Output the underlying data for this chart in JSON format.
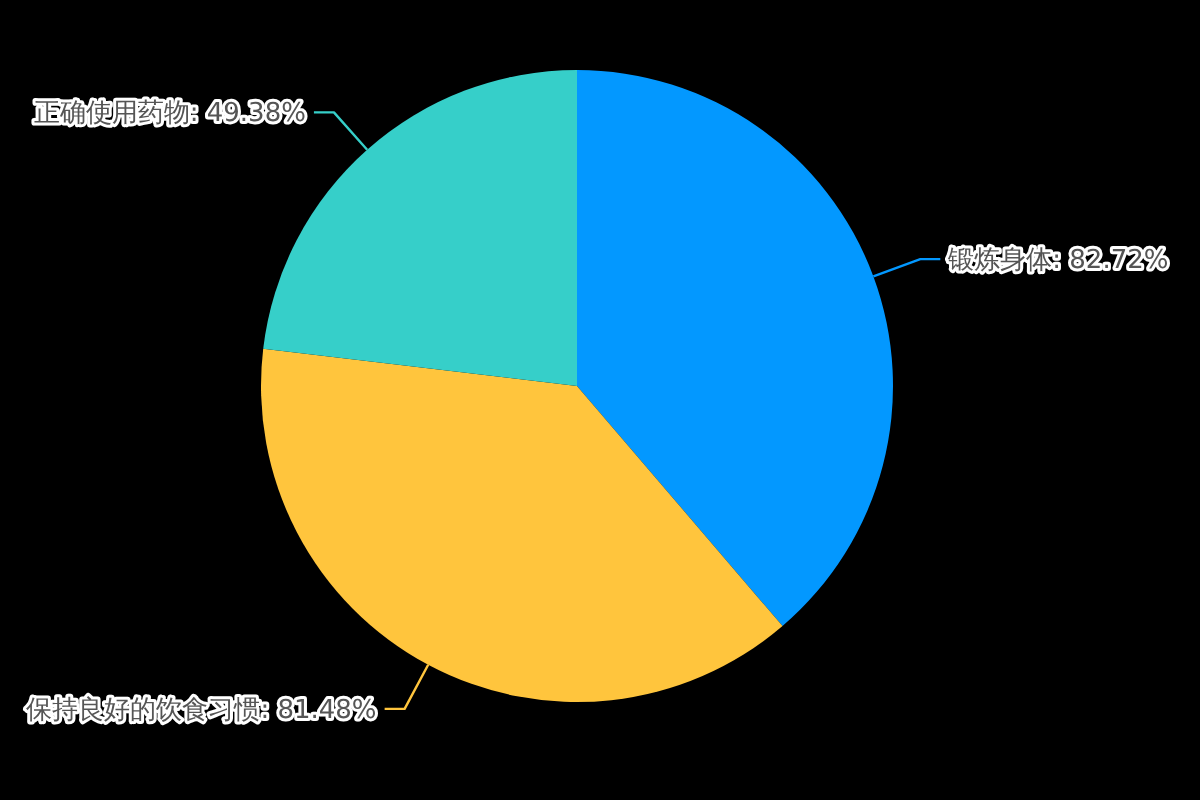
{
  "chart_data": {
    "type": "pie",
    "categories": [
      "锻炼身体",
      "保持良好的饮食习惯",
      "正确使用药物"
    ],
    "values": [
      82.72,
      81.48,
      49.38
    ],
    "value_labels": [
      "82.72%",
      "81.48%",
      "49.38%"
    ],
    "colors": [
      "#0398ff",
      "#ffc53d",
      "#36cfc9"
    ],
    "legend": false
  }
}
